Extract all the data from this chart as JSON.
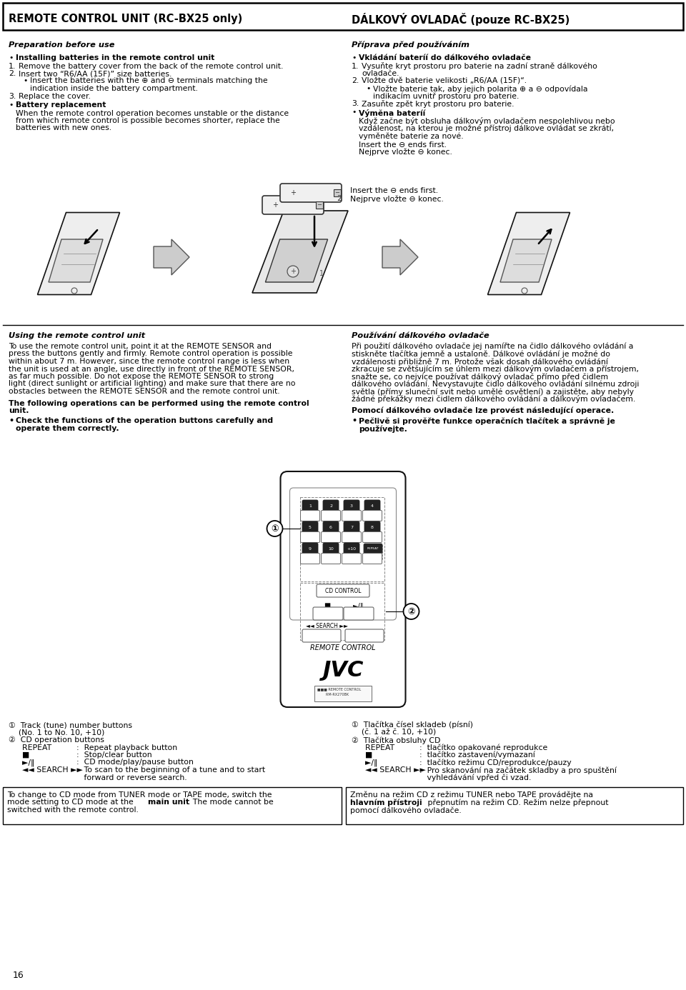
{
  "bg_color": "#ffffff",
  "title_left": "REMOTE CONTROL UNIT (RC-BX25 only)",
  "title_right": "DÁLKOVÝ OVLADAČ (pouze RC-BX25)",
  "page_number": "16"
}
